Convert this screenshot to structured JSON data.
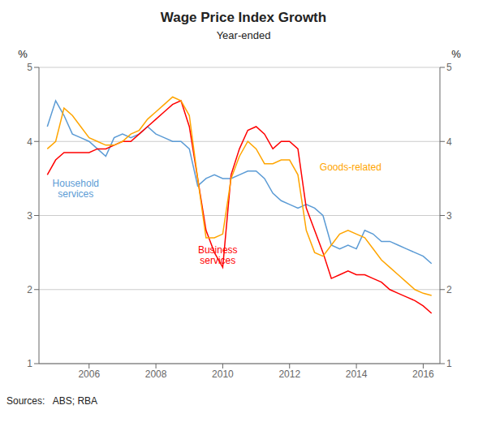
{
  "chart_data": {
    "type": "line",
    "title": "Wage Price Index Growth",
    "subtitle": "Year-ended",
    "ylabel": "%",
    "y2label": "%",
    "source": "Sources:   ABS; RBA",
    "x": [
      2004.75,
      2005.0,
      2005.25,
      2005.5,
      2005.75,
      2006.0,
      2006.25,
      2006.5,
      2006.75,
      2007.0,
      2007.25,
      2007.5,
      2007.75,
      2008.0,
      2008.25,
      2008.5,
      2008.75,
      2009.0,
      2009.25,
      2009.5,
      2009.75,
      2010.0,
      2010.25,
      2010.5,
      2010.75,
      2011.0,
      2011.25,
      2011.5,
      2011.75,
      2012.0,
      2012.25,
      2012.5,
      2012.75,
      2013.0,
      2013.25,
      2013.5,
      2013.75,
      2014.0,
      2014.25,
      2014.5,
      2014.75,
      2015.0,
      2015.25,
      2015.5,
      2015.75,
      2016.0,
      2016.25
    ],
    "series": [
      {
        "name": "Household\nservices",
        "color": "#5b9bd5",
        "values": [
          4.2,
          4.55,
          4.35,
          4.1,
          4.05,
          4.0,
          3.9,
          3.8,
          4.05,
          4.1,
          4.05,
          4.1,
          4.2,
          4.1,
          4.05,
          4.0,
          4.0,
          3.9,
          3.4,
          3.5,
          3.55,
          3.5,
          3.5,
          3.55,
          3.6,
          3.6,
          3.5,
          3.3,
          3.2,
          3.15,
          3.1,
          3.15,
          3.1,
          3.0,
          2.6,
          2.55,
          2.6,
          2.55,
          2.8,
          2.75,
          2.65,
          2.65,
          2.6,
          2.55,
          2.5,
          2.45,
          2.35
        ]
      },
      {
        "name": "Business\nservices",
        "color": "#ff0000",
        "values": [
          3.55,
          3.75,
          3.85,
          3.85,
          3.85,
          3.85,
          3.9,
          3.9,
          3.95,
          4.0,
          4.0,
          4.1,
          4.2,
          4.3,
          4.4,
          4.5,
          4.55,
          4.2,
          3.5,
          2.8,
          2.5,
          2.3,
          3.55,
          3.9,
          4.15,
          4.2,
          4.1,
          3.9,
          4.0,
          4.0,
          3.9,
          3.1,
          2.8,
          2.5,
          2.15,
          2.2,
          2.25,
          2.2,
          2.2,
          2.15,
          2.1,
          2.0,
          1.95,
          1.9,
          1.85,
          1.78,
          1.68
        ]
      },
      {
        "name": "Goods-related",
        "color": "#ffa500",
        "values": [
          3.9,
          4.0,
          4.45,
          4.35,
          4.2,
          4.05,
          4.0,
          3.95,
          3.95,
          4.0,
          4.1,
          4.15,
          4.3,
          4.4,
          4.5,
          4.6,
          4.55,
          4.35,
          3.5,
          2.7,
          2.7,
          2.75,
          3.5,
          3.8,
          4.0,
          3.9,
          3.7,
          3.7,
          3.75,
          3.75,
          3.55,
          2.8,
          2.5,
          2.45,
          2.6,
          2.75,
          2.8,
          2.75,
          2.7,
          2.55,
          2.4,
          2.3,
          2.2,
          2.1,
          2.0,
          1.95,
          1.92
        ]
      }
    ],
    "xlim": [
      2004.5,
      2016.5
    ],
    "xticks": [
      2006,
      2008,
      2010,
      2012,
      2014,
      2016
    ],
    "ylim": [
      1,
      5
    ],
    "yticks": [
      1,
      2,
      3,
      4,
      5
    ],
    "y2lim": [
      1,
      5
    ],
    "y2ticks": [
      1,
      2,
      3,
      4,
      5
    ],
    "grid": "y"
  }
}
